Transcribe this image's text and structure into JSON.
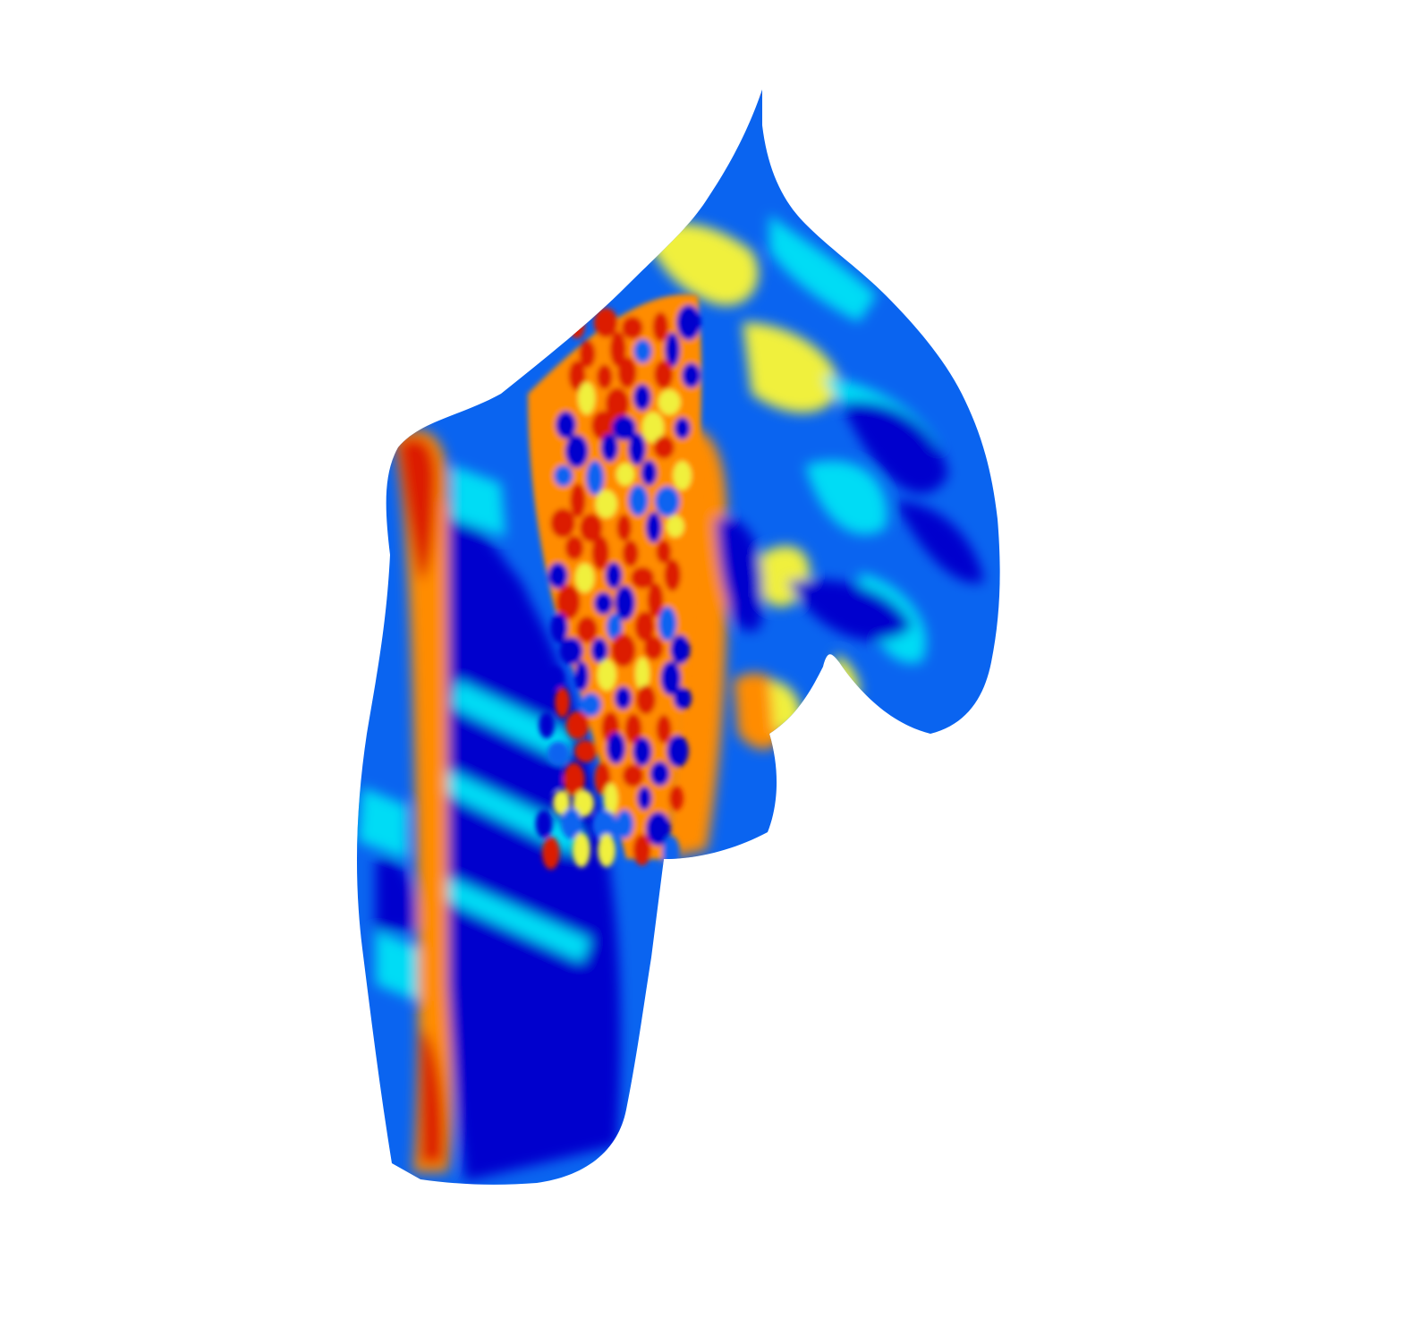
{
  "figure": {
    "kind": "3d-surface-render",
    "colormap": "jet",
    "colors": {
      "background": "#ffffff",
      "low": "#0000cd",
      "low_mid": "#0a64f0",
      "mid": "#00dcf5",
      "mid_high": "#f0f03c",
      "high_mid": "#ff8c00",
      "high": "#dc1e00"
    }
  }
}
